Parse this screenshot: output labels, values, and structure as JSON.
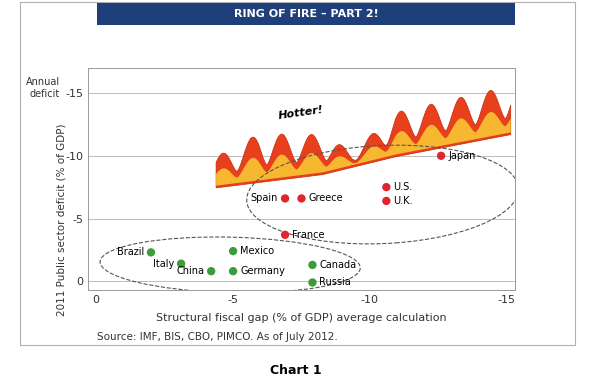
{
  "chart_data": {
    "type": "scatter",
    "title": "RING OF FIRE – PART 2!",
    "x_label": "Structural fiscal gap (% of GDP) average calculation",
    "y_label": "2011 Public sector deficit (% of GDP)",
    "annotations": [
      "Annual\ndeficit",
      "Hotter!"
    ],
    "source": "Source: IMF, BIS, CBO, PIMCO. As of July 2012.",
    "caption": "Chart 1",
    "xlim": [
      0.3,
      -15.3
    ],
    "xticks": [
      0,
      -5,
      -10,
      -15
    ],
    "ylim": [
      0.7,
      -17
    ],
    "yticks": [
      0,
      -5,
      -10,
      -15
    ],
    "grid": "y",
    "series": [
      {
        "color": "#3a9d3a",
        "marker": "circle",
        "labels": [
          "Brazil",
          "Italy",
          "China",
          "Mexico",
          "Germany",
          "Canada",
          "Russia"
        ],
        "x": [
          -2.0,
          -3.1,
          -4.2,
          -5.0,
          -5.0,
          -7.9,
          -7.9
        ],
        "values": [
          -2.3,
          -1.4,
          -0.8,
          -2.4,
          -0.8,
          -1.3,
          0.1
        ]
      },
      {
        "color": "#e0262b",
        "marker": "circle",
        "labels": [
          "France",
          "Spain",
          "Greece",
          "U.S.",
          "U.K.",
          "Japan"
        ],
        "x": [
          -6.9,
          -6.9,
          -7.5,
          -10.6,
          -10.6,
          -12.6
        ],
        "values": [
          -3.7,
          -6.6,
          -6.6,
          -7.5,
          -6.4,
          -10.0
        ]
      }
    ]
  }
}
